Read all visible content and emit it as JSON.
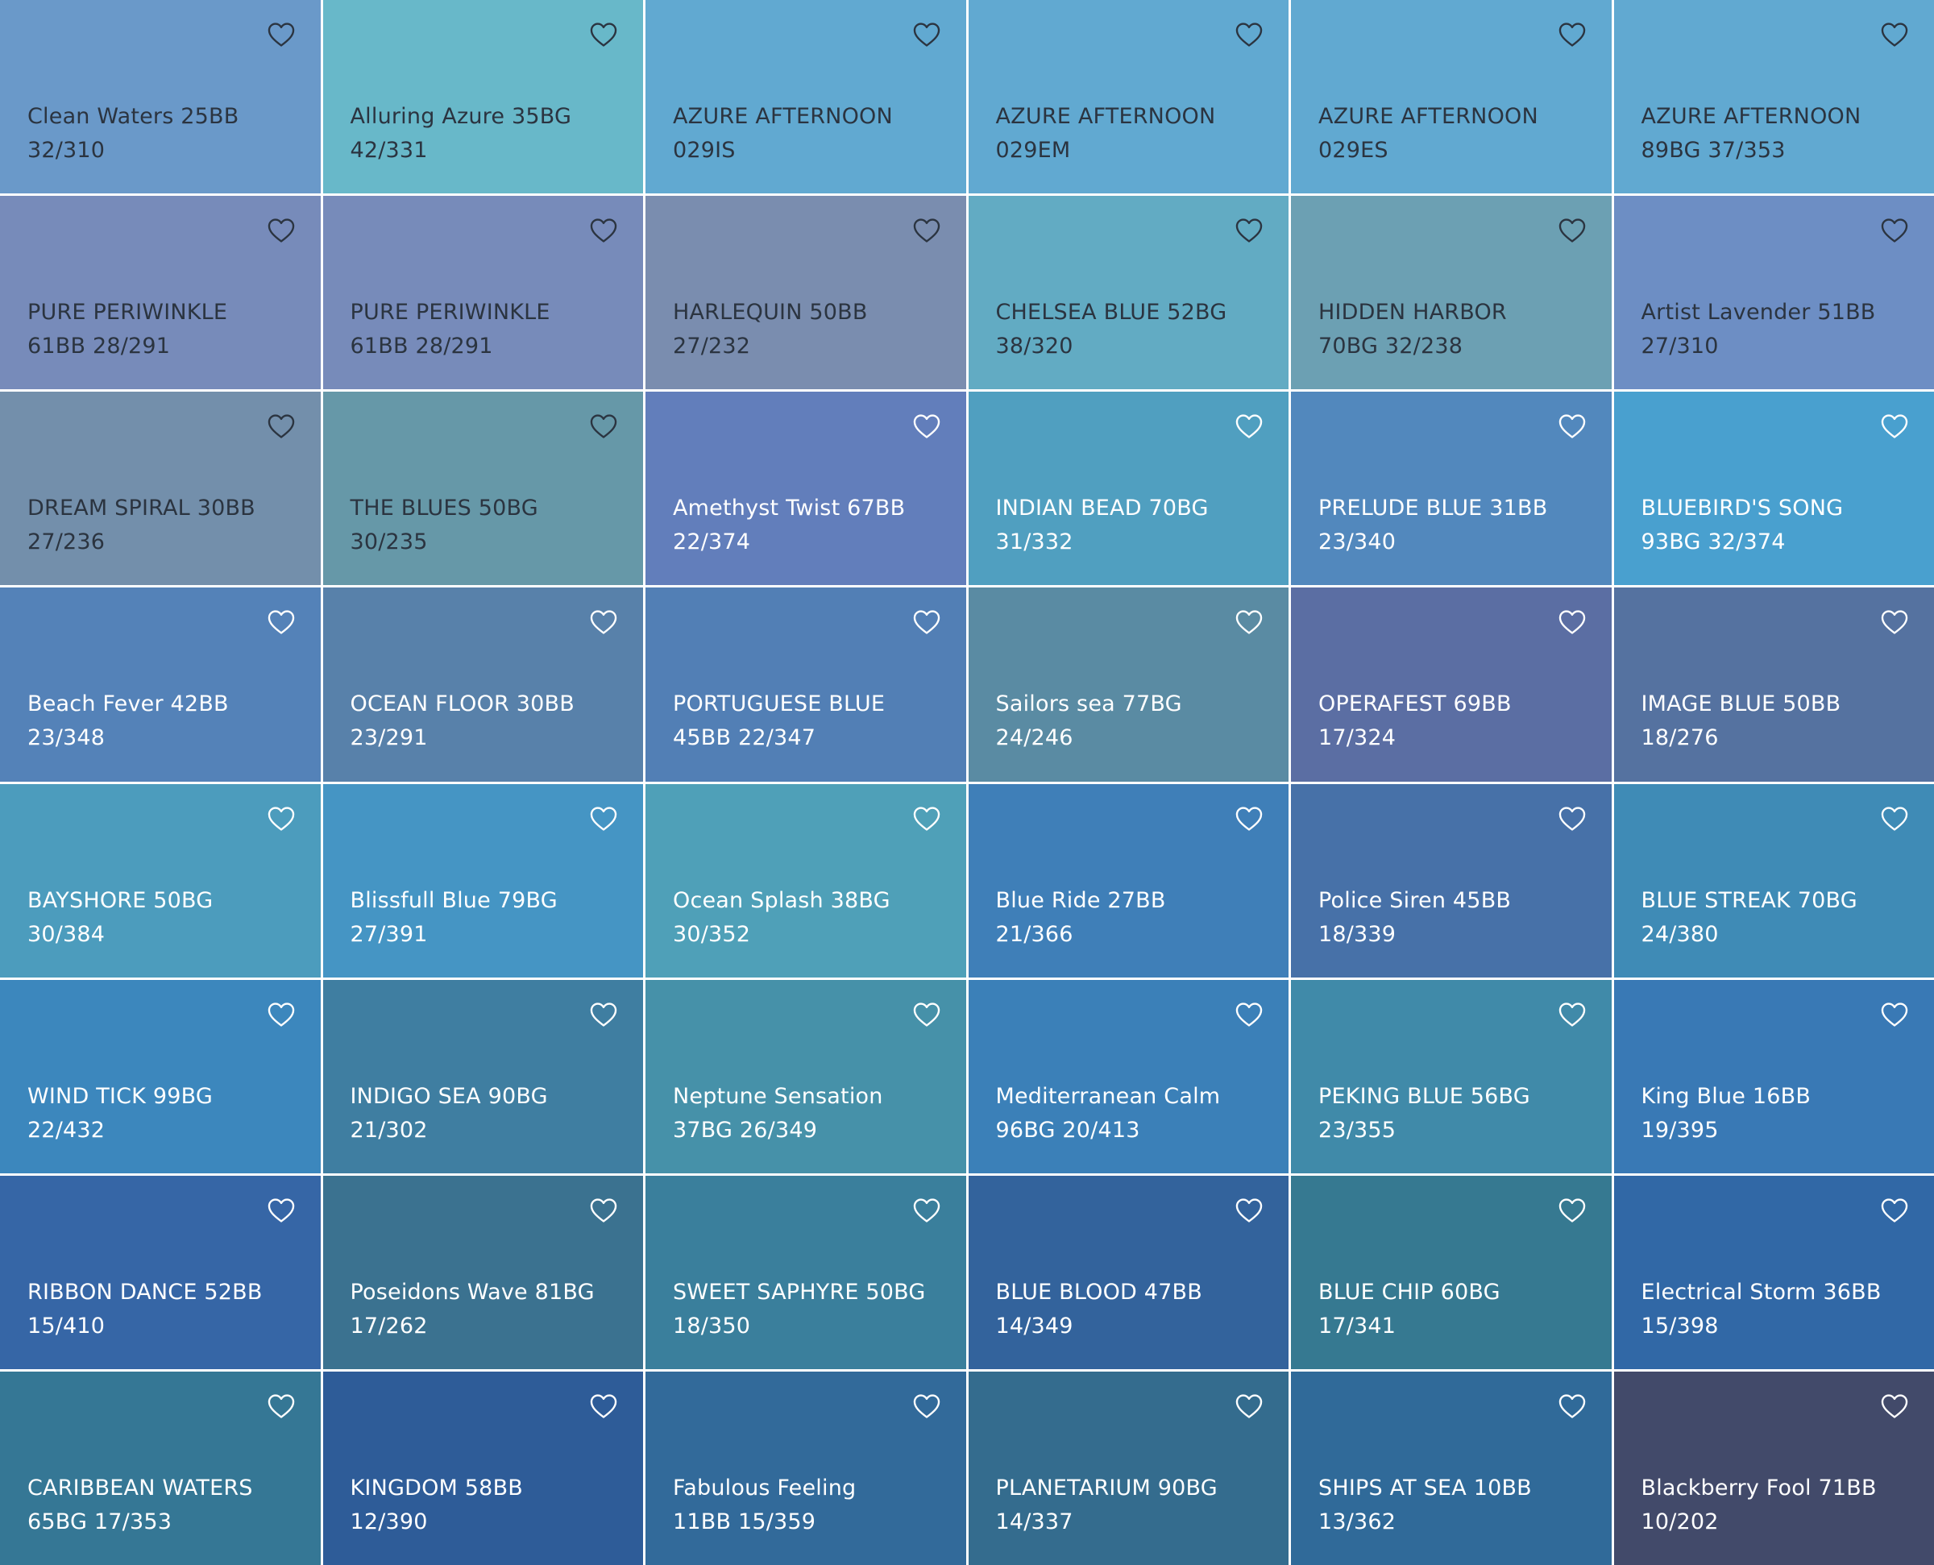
{
  "favorite_icon": "heart-outline-icon",
  "swatches": [
    {
      "name": "Clean Waters 25BB",
      "code": "32/310",
      "color": "#6a99c9",
      "text": "dark"
    },
    {
      "name": "Alluring Azure 35BG",
      "code": "42/331",
      "color": "#68b8c9",
      "text": "dark"
    },
    {
      "name": "AZURE AFTERNOON",
      "code": "029IS",
      "color": "#61a9d1",
      "text": "dark"
    },
    {
      "name": "AZURE AFTERNOON",
      "code": "029EM",
      "color": "#61a9d1",
      "text": "dark"
    },
    {
      "name": "AZURE AFTERNOON",
      "code": "029ES",
      "color": "#61a9d1",
      "text": "dark"
    },
    {
      "name": "AZURE AFTERNOON",
      "code": "89BG 37/353",
      "color": "#61a9d1",
      "text": "dark"
    },
    {
      "name": "PURE PERIWINKLE",
      "code": "61BB 28/291",
      "color": "#778bba",
      "text": "dark"
    },
    {
      "name": "PURE PERIWINKLE",
      "code": "61BB 28/291",
      "color": "#778bba",
      "text": "dark"
    },
    {
      "name": "HARLEQUIN 50BB",
      "code": "27/232",
      "color": "#7a8daf",
      "text": "dark"
    },
    {
      "name": "CHELSEA BLUE 52BG",
      "code": "38/320",
      "color": "#62abc3",
      "text": "dark"
    },
    {
      "name": "HIDDEN HARBOR",
      "code": "70BG 32/238",
      "color": "#6ca0b3",
      "text": "dark"
    },
    {
      "name": "Artist Lavender 51BB",
      "code": "27/310",
      "color": "#6d8ec4",
      "text": "dark"
    },
    {
      "name": "DREAM SPIRAL 30BB",
      "code": "27/236",
      "color": "#738fab",
      "text": "dark"
    },
    {
      "name": "THE BLUES 50BG",
      "code": "30/235",
      "color": "#6698a8",
      "text": "dark"
    },
    {
      "name": "Amethyst Twist 67BB",
      "code": "22/374",
      "color": "#627ebb",
      "text": "light"
    },
    {
      "name": "INDIAN BEAD 70BG",
      "code": "31/332",
      "color": "#509fc0",
      "text": "light"
    },
    {
      "name": "PRELUDE BLUE 31BB",
      "code": "23/340",
      "color": "#5288bd",
      "text": "light"
    },
    {
      "name": "BLUEBIRD'S SONG",
      "code": "93BG 32/374",
      "color": "#49a0cf",
      "text": "light"
    },
    {
      "name": "Beach Fever 42BB",
      "code": "23/348",
      "color": "#5482b8",
      "text": "light"
    },
    {
      "name": "OCEAN FLOOR 30BB",
      "code": "23/291",
      "color": "#5881aa",
      "text": "light"
    },
    {
      "name": "PORTUGUESE BLUE",
      "code": "45BB 22/347",
      "color": "#527fb5",
      "text": "light"
    },
    {
      "name": "Sailors sea 77BG",
      "code": "24/246",
      "color": "#5a8ba3",
      "text": "light"
    },
    {
      "name": "OPERAFEST 69BB",
      "code": "17/324",
      "color": "#5b6ea3",
      "text": "light"
    },
    {
      "name": "IMAGE BLUE 50BB",
      "code": "18/276",
      "color": "#5572a0",
      "text": "light"
    },
    {
      "name": "BAYSHORE 50BG",
      "code": "30/384",
      "color": "#4c9cbd",
      "text": "light"
    },
    {
      "name": "Blissfull Blue 79BG",
      "code": "27/391",
      "color": "#4595c4",
      "text": "light"
    },
    {
      "name": "Ocean Splash 38BG",
      "code": "30/352",
      "color": "#4fa0b8",
      "text": "light"
    },
    {
      "name": "Blue Ride 27BB",
      "code": "21/366",
      "color": "#3f7fb8",
      "text": "light"
    },
    {
      "name": "Police Siren 45BB",
      "code": "18/339",
      "color": "#4771a8",
      "text": "light"
    },
    {
      "name": "BLUE STREAK 70BG",
      "code": "24/380",
      "color": "#3f8bb6",
      "text": "light"
    },
    {
      "name": "WIND TICK 99BG",
      "code": "22/432",
      "color": "#3c87bd",
      "text": "light"
    },
    {
      "name": "INDIGO SEA 90BG",
      "code": "21/302",
      "color": "#3f7ea1",
      "text": "light"
    },
    {
      "name": "Neptune Sensation",
      "code": "37BG 26/349",
      "color": "#4691a9",
      "text": "light"
    },
    {
      "name": "Mediterranean Calm",
      "code": "96BG 20/413",
      "color": "#3b80b8",
      "text": "light"
    },
    {
      "name": "PEKING BLUE 56BG",
      "code": "23/355",
      "color": "#408aa9",
      "text": "light"
    },
    {
      "name": "King Blue 16BB",
      "code": "19/395",
      "color": "#3979b5",
      "text": "light"
    },
    {
      "name": "RIBBON DANCE 52BB",
      "code": "15/410",
      "color": "#3666a6",
      "text": "light"
    },
    {
      "name": "Poseidons Wave 81BG",
      "code": "17/262",
      "color": "#3b7290",
      "text": "light"
    },
    {
      "name": "SWEET SAPHYRE 50BG",
      "code": "18/350",
      "color": "#3a7f9c",
      "text": "light"
    },
    {
      "name": "BLUE BLOOD 47BB",
      "code": "14/349",
      "color": "#33639c",
      "text": "light"
    },
    {
      "name": "BLUE CHIP 60BG",
      "code": "17/341",
      "color": "#367991",
      "text": "light"
    },
    {
      "name": "Electrical Storm 36BB",
      "code": "15/398",
      "color": "#3168a6",
      "text": "light"
    },
    {
      "name": "CARIBBEAN WATERS",
      "code": "65BG 17/353",
      "color": "#357795",
      "text": "light"
    },
    {
      "name": "KINGDOM 58BB",
      "code": "12/390",
      "color": "#2e5c98",
      "text": "light"
    },
    {
      "name": "Fabulous Feeling",
      "code": "11BB 15/359",
      "color": "#326a9a",
      "text": "light"
    },
    {
      "name": "PLANETARIUM 90BG",
      "code": "14/337",
      "color": "#346c8e",
      "text": "light"
    },
    {
      "name": "SHIPS AT SEA 10BB",
      "code": "13/362",
      "color": "#306a99",
      "text": "light"
    },
    {
      "name": "Blackberry Fool 71BB",
      "code": "10/202",
      "color": "#424a6a",
      "text": "light"
    }
  ]
}
